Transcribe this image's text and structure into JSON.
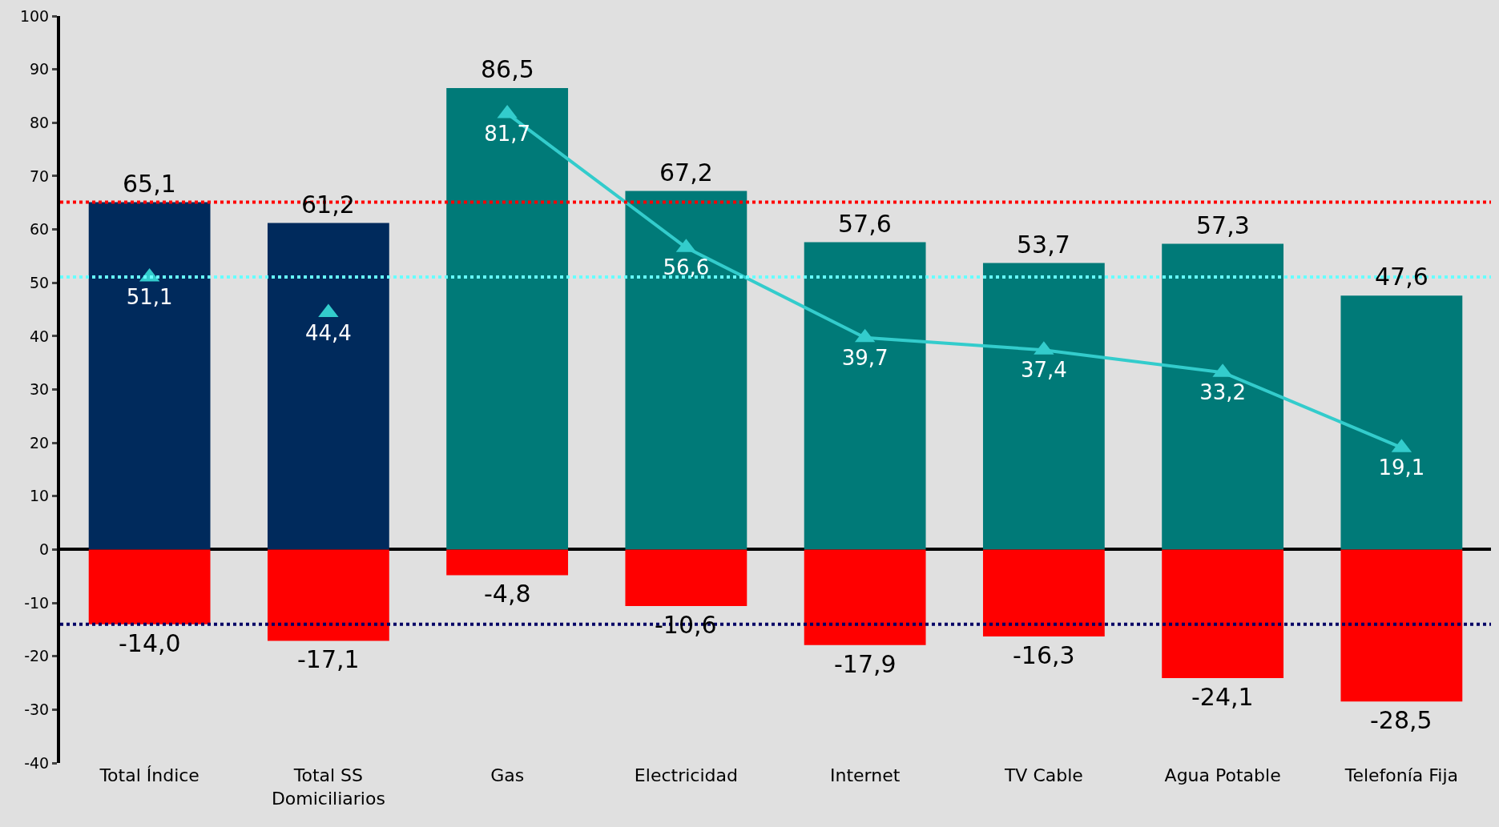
{
  "chart_data": {
    "type": "bar",
    "categories": [
      "Total Índice",
      "Total SS Domiciliarios",
      "Gas",
      "Electricidad",
      "Internet",
      "TV Cable",
      "Agua Potable",
      "Telefonía Fija"
    ],
    "series": [
      {
        "colors": [
          "#002a5c",
          "#002a5c",
          "#007a78",
          "#007a78",
          "#007a78",
          "#007a78",
          "#007a78",
          "#007a78"
        ],
        "values": [
          65.1,
          61.2,
          86.5,
          67.2,
          57.6,
          53.7,
          57.3,
          47.6
        ],
        "value_labels": [
          "65,1",
          "61,2",
          "86,5",
          "67,2",
          "57,6",
          "53,7",
          "57,3",
          "47,6"
        ]
      },
      {
        "color": "#ff0000",
        "values": [
          -14.0,
          -17.1,
          -4.8,
          -10.6,
          -17.9,
          -16.3,
          -24.1,
          -28.5
        ],
        "value_labels": [
          "-14,0",
          "-17,1",
          "-4,8",
          "-10,6",
          "-17,9",
          "-16,3",
          "-24,1",
          "-28,5"
        ]
      },
      {
        "type": "scatter",
        "color": "#33cccc",
        "marker": "triangle",
        "values": [
          51.1,
          44.4,
          null,
          null,
          null,
          null,
          null,
          null
        ],
        "value_labels": [
          "51,1",
          "44,4",
          null,
          null,
          null,
          null,
          null,
          null
        ]
      },
      {
        "type": "line",
        "color": "#33cccc",
        "marker": "triangle",
        "line_style": "solid",
        "values": [
          null,
          null,
          81.7,
          56.6,
          39.7,
          37.4,
          33.2,
          19.1
        ],
        "value_labels": [
          null,
          null,
          "81,7",
          "56,6",
          "39,7",
          "37,4",
          "33,2",
          "19,1"
        ]
      }
    ],
    "ylim": [
      -40,
      100
    ],
    "yticks": [
      -40,
      -30,
      -20,
      -10,
      0,
      10,
      20,
      30,
      40,
      50,
      60,
      70,
      80,
      90,
      100
    ],
    "stacked": true,
    "ref_lines": [
      {
        "axis": "y",
        "value": 65.1,
        "color": "#ff0000",
        "line_style": "dotted"
      },
      {
        "axis": "y",
        "value": 51.1,
        "color": "#66ffff",
        "line_style": "dotted"
      },
      {
        "axis": "y",
        "value": -14.0,
        "color": "#000066",
        "line_style": "dotted"
      }
    ]
  }
}
